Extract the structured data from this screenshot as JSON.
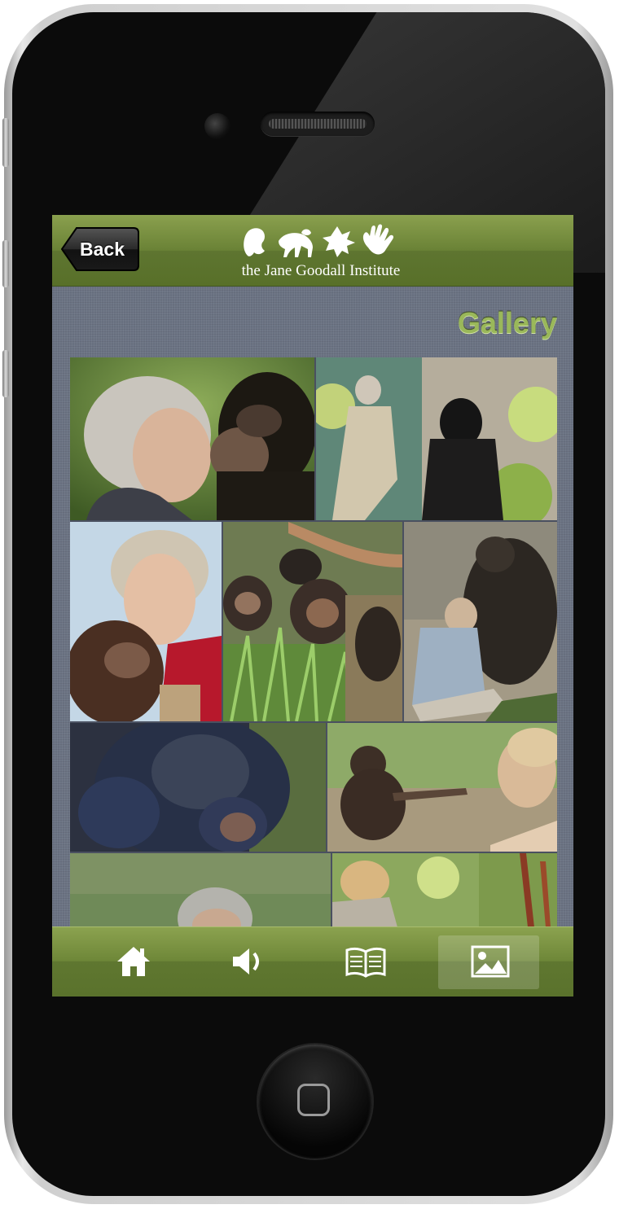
{
  "app": {
    "nav": {
      "back_label": "Back",
      "logo_text": "the Jane Goodall Institute"
    },
    "page_title": "Gallery",
    "gallery": {
      "photos": [
        {
          "subject": "Jane kissing chimpanzee"
        },
        {
          "subject": "Jane sitting beside chimpanzee"
        },
        {
          "subject": "Jane with young chimpanzee"
        },
        {
          "subject": "Chimpanzees in grass"
        },
        {
          "subject": "Chimpanzee grooming Jane"
        },
        {
          "subject": "Mother chimpanzee with infant"
        },
        {
          "subject": "Jane and chimpanzee touching fingers"
        },
        {
          "subject": "Jane outdoors"
        },
        {
          "subject": "Jane in forest"
        }
      ]
    },
    "tabs": [
      {
        "icon": "home-icon"
      },
      {
        "icon": "speaker-icon"
      },
      {
        "icon": "book-icon"
      },
      {
        "icon": "image-icon",
        "active": true
      }
    ],
    "colors": {
      "nav_green": "#6a8236",
      "title_green": "#9ab85a",
      "background": "#6b7383"
    }
  }
}
